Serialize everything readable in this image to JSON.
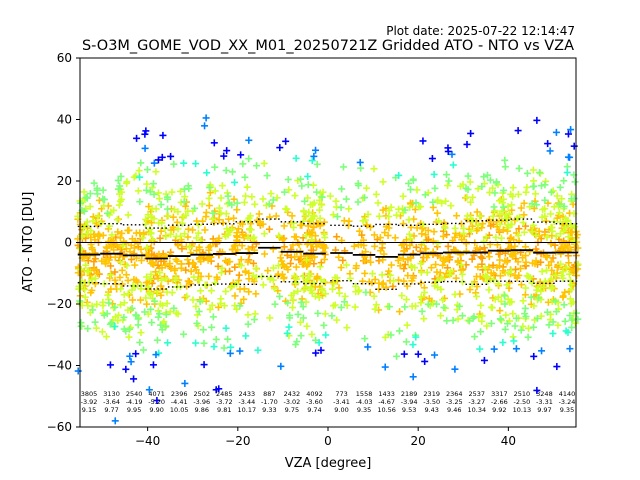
{
  "plot_date": "Plot date: 2025-07-22 12:14:47",
  "chart_data": {
    "type": "scatter",
    "title": "S-O3M_GOME_VOD_XX_M01_20250721Z Gridded ATO - NTO vs VZA",
    "xlabel": "VZA [degree]",
    "ylabel": "ATO - NTO [DU]",
    "xlim": [
      -55,
      55
    ],
    "ylim": [
      -60,
      60
    ],
    "xticks": [
      -40,
      -20,
      0,
      20,
      40
    ],
    "yticks": [
      -60,
      -40,
      -20,
      0,
      20,
      40,
      60
    ],
    "grid": false,
    "legend": "none",
    "colors": {
      "mean_line": "#000000",
      "std_lines": "#000000",
      "zero_line": "#000000",
      "scatter_palette": [
        "#0000ff",
        "#0080ff",
        "#00d4ff",
        "#29ffce",
        "#7dff7a",
        "#ceff29",
        "#ffc400",
        "#ffa000"
      ]
    },
    "bins": {
      "x": [
        -53,
        -48,
        -43,
        -38,
        -33,
        -28,
        -23,
        -18,
        -13,
        -8,
        -3,
        3,
        8,
        13,
        18,
        23,
        28,
        33,
        38,
        43,
        48,
        53
      ],
      "count": [
        3805,
        3130,
        2540,
        4071,
        2396,
        2502,
        2485,
        2433,
        887,
        2432,
        4092,
        773,
        1558,
        1433,
        2189,
        2319,
        2364,
        2537,
        3317,
        2510,
        3248,
        4140
      ],
      "mean": [
        -3.92,
        -3.64,
        -4.19,
        -5.2,
        -4.41,
        -3.96,
        -3.72,
        -3.44,
        -1.7,
        -3.02,
        -3.6,
        -3.41,
        -4.03,
        -4.67,
        -3.94,
        -3.5,
        -3.25,
        -3.27,
        -2.66,
        -2.5,
        -3.31,
        -3.24
      ],
      "std": [
        9.15,
        9.77,
        9.95,
        9.9,
        10.05,
        9.86,
        9.81,
        10.17,
        9.33,
        9.75,
        9.74,
        9.0,
        9.35,
        10.56,
        9.53,
        9.43,
        9.46,
        10.34,
        9.92,
        10.13,
        9.97,
        9.35
      ]
    }
  }
}
